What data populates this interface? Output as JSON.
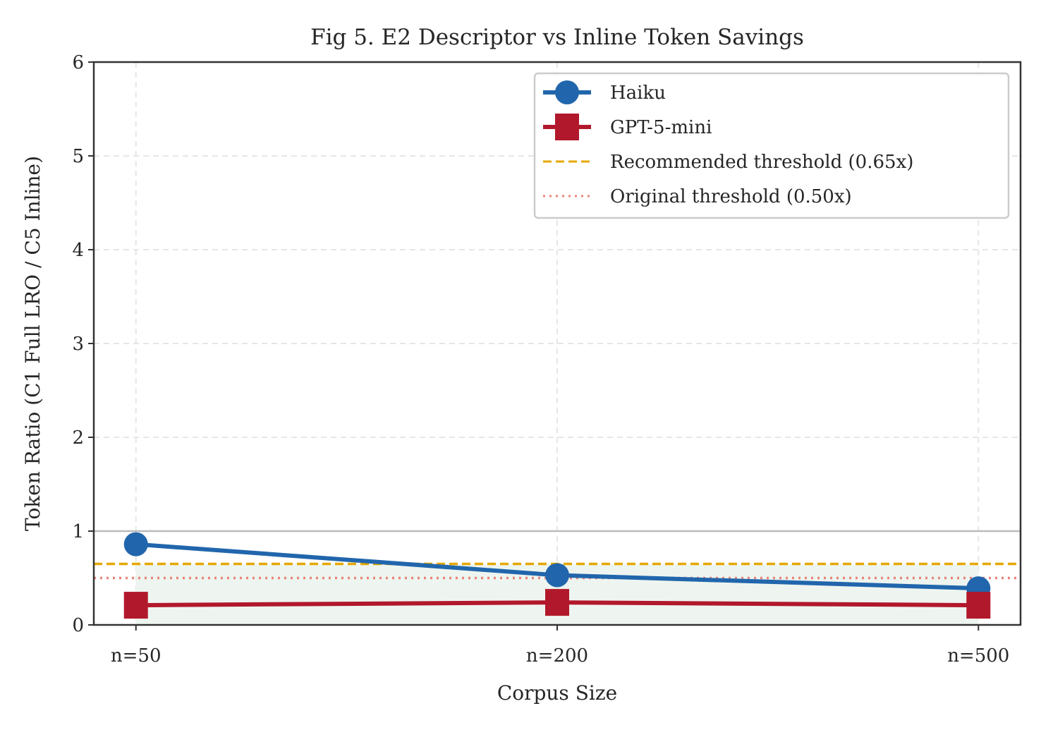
{
  "chart_data": {
    "type": "line",
    "title": "Fig 5. E2 Descriptor vs Inline Token Savings",
    "xlabel": "Corpus Size",
    "ylabel": "Token Ratio (C1 Full LRO / C5 Inline)",
    "categories": [
      "n=50",
      "n=200",
      "n=500"
    ],
    "ylim": [
      0,
      6
    ],
    "yticks": [
      "0",
      "1",
      "2",
      "3",
      "4",
      "5",
      "6"
    ],
    "grid": true,
    "legend_position": "top-right",
    "series": [
      {
        "name": "Haiku",
        "values": [
          0.86,
          0.53,
          0.39
        ],
        "color": "#2166ac",
        "marker": "circle"
      },
      {
        "name": "GPT-5-mini",
        "values": [
          0.21,
          0.24,
          0.21
        ],
        "color": "#b2182b",
        "marker": "square"
      }
    ],
    "reference_lines": [
      {
        "name": "Recommended threshold (0.65x)",
        "value": 0.65,
        "color": "#e6a800",
        "style": "dashed"
      },
      {
        "name": "Original threshold (0.50x)",
        "value": 0.5,
        "color": "#e8857a",
        "style": "dotted"
      },
      {
        "value": 1.0,
        "color": "#bbbbbb",
        "style": "solid"
      }
    ],
    "shaded_region": {
      "from": 0,
      "to": 0.65,
      "color": "#eef5f0"
    }
  }
}
